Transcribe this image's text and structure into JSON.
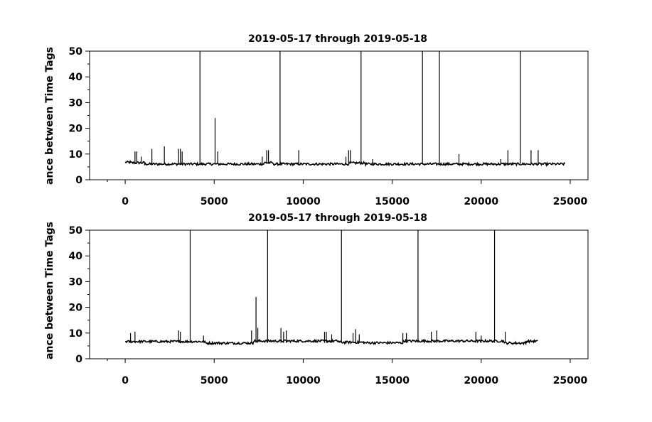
{
  "chart_data": [
    {
      "type": "line",
      "title": "2019-05-17 through 2019-05-18",
      "ylabel": "ance between Time Tags",
      "xlabel": "",
      "xlim": [
        -2000,
        26000
      ],
      "ylim": [
        0,
        50
      ],
      "xticks": [
        0,
        5000,
        10000,
        15000,
        20000,
        25000
      ],
      "yticks": [
        0,
        10,
        20,
        30,
        40,
        50
      ],
      "grid": false,
      "n_points": 24700,
      "baseline": [
        {
          "x0": 0,
          "x1": 300,
          "y": 6.8
        },
        {
          "x0": 300,
          "x1": 1100,
          "y": 6.6
        },
        {
          "x0": 1100,
          "x1": 7800,
          "y": 6.1
        },
        {
          "x0": 7800,
          "x1": 8300,
          "y": 6.6
        },
        {
          "x0": 8300,
          "x1": 12600,
          "y": 6.1
        },
        {
          "x0": 12600,
          "x1": 13500,
          "y": 6.5
        },
        {
          "x0": 13500,
          "x1": 24700,
          "y": 6.1
        }
      ],
      "spikes": [
        {
          "x": 550,
          "y": 11
        },
        {
          "x": 650,
          "y": 11
        },
        {
          "x": 900,
          "y": 9
        },
        {
          "x": 1500,
          "y": 12
        },
        {
          "x": 2200,
          "y": 13
        },
        {
          "x": 3000,
          "y": 12
        },
        {
          "x": 3100,
          "y": 12
        },
        {
          "x": 3200,
          "y": 11
        },
        {
          "x": 4200,
          "y": 50
        },
        {
          "x": 5050,
          "y": 24
        },
        {
          "x": 5200,
          "y": 11
        },
        {
          "x": 7700,
          "y": 9
        },
        {
          "x": 7950,
          "y": 11.5
        },
        {
          "x": 8050,
          "y": 11.5
        },
        {
          "x": 8700,
          "y": 50
        },
        {
          "x": 9750,
          "y": 11.5
        },
        {
          "x": 12400,
          "y": 9
        },
        {
          "x": 12550,
          "y": 11.5
        },
        {
          "x": 12650,
          "y": 11.5
        },
        {
          "x": 13250,
          "y": 50
        },
        {
          "x": 13900,
          "y": 8
        },
        {
          "x": 16700,
          "y": 50
        },
        {
          "x": 17650,
          "y": 50
        },
        {
          "x": 18750,
          "y": 10
        },
        {
          "x": 21100,
          "y": 8
        },
        {
          "x": 21500,
          "y": 11.5
        },
        {
          "x": 22200,
          "y": 50
        },
        {
          "x": 22800,
          "y": 11.5
        },
        {
          "x": 23200,
          "y": 11.5
        }
      ]
    },
    {
      "type": "line",
      "title": "2019-05-17 through 2019-05-18",
      "ylabel": "ance between Time Tags",
      "xlabel": "",
      "xlim": [
        -2000,
        26000
      ],
      "ylim": [
        0,
        50
      ],
      "xticks": [
        0,
        5000,
        10000,
        15000,
        20000,
        25000
      ],
      "yticks": [
        0,
        10,
        20,
        30,
        40,
        50
      ],
      "grid": false,
      "n_points": 23200,
      "baseline": [
        {
          "x0": 0,
          "x1": 4500,
          "y": 6.7
        },
        {
          "x0": 4500,
          "x1": 7200,
          "y": 6.1
        },
        {
          "x0": 7200,
          "x1": 12000,
          "y": 6.9
        },
        {
          "x0": 12000,
          "x1": 13400,
          "y": 6.4
        },
        {
          "x0": 13400,
          "x1": 15600,
          "y": 6.2
        },
        {
          "x0": 15600,
          "x1": 21300,
          "y": 6.9
        },
        {
          "x0": 21300,
          "x1": 22500,
          "y": 6.1
        },
        {
          "x0": 22500,
          "x1": 23200,
          "y": 6.8
        }
      ],
      "spikes": [
        {
          "x": 300,
          "y": 10
        },
        {
          "x": 550,
          "y": 10.5
        },
        {
          "x": 3000,
          "y": 11
        },
        {
          "x": 3100,
          "y": 10.5
        },
        {
          "x": 3650,
          "y": 50
        },
        {
          "x": 4400,
          "y": 9
        },
        {
          "x": 7100,
          "y": 11
        },
        {
          "x": 7350,
          "y": 24
        },
        {
          "x": 7450,
          "y": 12
        },
        {
          "x": 8000,
          "y": 50
        },
        {
          "x": 8750,
          "y": 12
        },
        {
          "x": 8900,
          "y": 10.5
        },
        {
          "x": 9050,
          "y": 11
        },
        {
          "x": 11200,
          "y": 10.5
        },
        {
          "x": 11300,
          "y": 10.5
        },
        {
          "x": 11600,
          "y": 9.5
        },
        {
          "x": 12150,
          "y": 50
        },
        {
          "x": 12800,
          "y": 10
        },
        {
          "x": 12950,
          "y": 11.5
        },
        {
          "x": 13150,
          "y": 9.5
        },
        {
          "x": 15600,
          "y": 10
        },
        {
          "x": 15800,
          "y": 10
        },
        {
          "x": 16450,
          "y": 50
        },
        {
          "x": 17200,
          "y": 10.5
        },
        {
          "x": 17500,
          "y": 11
        },
        {
          "x": 19700,
          "y": 10.5
        },
        {
          "x": 20000,
          "y": 9
        },
        {
          "x": 20750,
          "y": 50
        },
        {
          "x": 21350,
          "y": 10.5
        }
      ]
    }
  ]
}
